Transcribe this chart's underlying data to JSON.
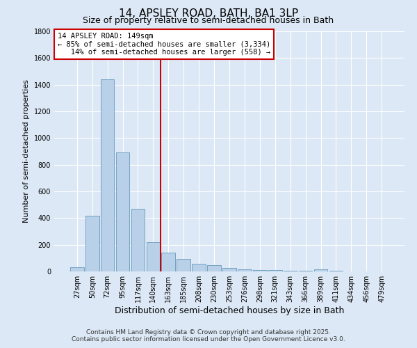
{
  "title": "14, APSLEY ROAD, BATH, BA1 3LP",
  "subtitle": "Size of property relative to semi-detached houses in Bath",
  "xlabel": "Distribution of semi-detached houses by size in Bath",
  "ylabel": "Number of semi-detached properties",
  "categories": [
    "27sqm",
    "50sqm",
    "72sqm",
    "95sqm",
    "117sqm",
    "140sqm",
    "163sqm",
    "185sqm",
    "208sqm",
    "230sqm",
    "253sqm",
    "276sqm",
    "298sqm",
    "321sqm",
    "343sqm",
    "366sqm",
    "389sqm",
    "411sqm",
    "434sqm",
    "456sqm",
    "479sqm"
  ],
  "values": [
    30,
    420,
    1440,
    890,
    470,
    220,
    140,
    95,
    60,
    45,
    25,
    15,
    10,
    8,
    5,
    3,
    15,
    3,
    2,
    2,
    1
  ],
  "bar_color": "#b8d0e8",
  "bar_edgecolor": "#6699bb",
  "property_line_x": 5.5,
  "annotation_line1": "14 APSLEY ROAD: 149sqm",
  "annotation_line2": "← 85% of semi-detached houses are smaller (3,334)",
  "annotation_line3": "   14% of semi-detached houses are larger (558) →",
  "annotation_box_color": "#ffffff",
  "annotation_box_edgecolor": "#cc0000",
  "vline_color": "#cc0000",
  "ylim": [
    0,
    1800
  ],
  "yticks": [
    0,
    200,
    400,
    600,
    800,
    1000,
    1200,
    1400,
    1600,
    1800
  ],
  "bg_color": "#dce8f5",
  "grid_color": "#ffffff",
  "footer1": "Contains HM Land Registry data © Crown copyright and database right 2025.",
  "footer2": "Contains public sector information licensed under the Open Government Licence v3.0.",
  "title_fontsize": 11,
  "subtitle_fontsize": 9,
  "ylabel_fontsize": 8,
  "xlabel_fontsize": 9,
  "tick_fontsize": 7,
  "annotation_fontsize": 7.5,
  "footer_fontsize": 6.5
}
